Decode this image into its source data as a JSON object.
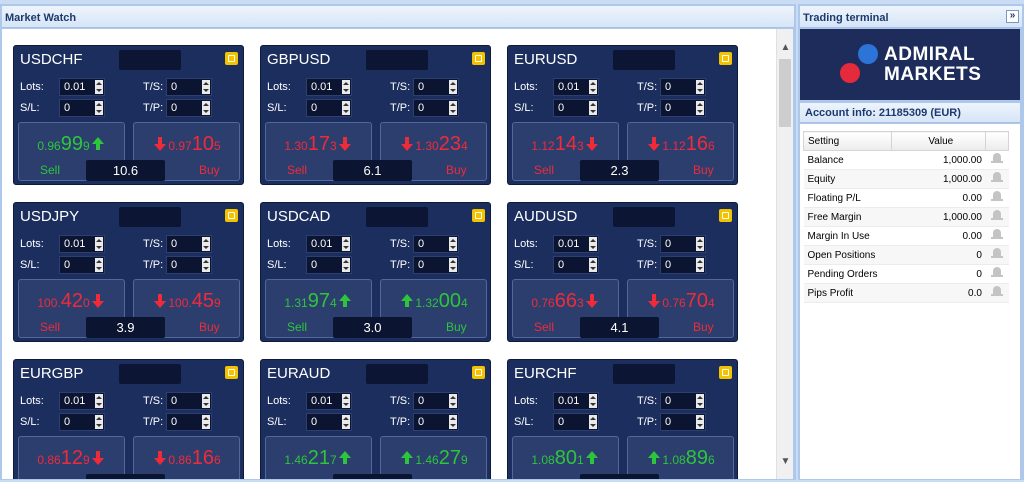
{
  "market_watch": {
    "title": "Market Watch",
    "labels": {
      "lots": "Lots:",
      "ts": "T/S:",
      "sl": "S/L:",
      "tp": "T/P:",
      "sell": "Sell",
      "buy": "Buy"
    },
    "tiles": [
      {
        "symbol": "USDCHF",
        "lots": "0.01",
        "ts": "0",
        "sl": "0",
        "tp": "0",
        "sell": {
          "small": "0.96",
          "big": "99",
          "pip": "9",
          "dir": "up"
        },
        "buy": {
          "small": "0.97",
          "big": "10",
          "pip": "5",
          "dir": "down"
        },
        "spread": "10.6"
      },
      {
        "symbol": "GBPUSD",
        "lots": "0.01",
        "ts": "0",
        "sl": "0",
        "tp": "0",
        "sell": {
          "small": "1.30",
          "big": "17",
          "pip": "3",
          "dir": "down"
        },
        "buy": {
          "small": "1.30",
          "big": "23",
          "pip": "4",
          "dir": "down"
        },
        "spread": "6.1"
      },
      {
        "symbol": "EURUSD",
        "lots": "0.01",
        "ts": "0",
        "sl": "0",
        "tp": "0",
        "sell": {
          "small": "1.12",
          "big": "14",
          "pip": "3",
          "dir": "down"
        },
        "buy": {
          "small": "1.12",
          "big": "16",
          "pip": "6",
          "dir": "down"
        },
        "spread": "2.3"
      },
      {
        "symbol": "USDJPY",
        "lots": "0.01",
        "ts": "0",
        "sl": "0",
        "tp": "0",
        "sell": {
          "small": "100.",
          "big": "42",
          "pip": "0",
          "dir": "down"
        },
        "buy": {
          "small": "100.",
          "big": "45",
          "pip": "9",
          "dir": "down"
        },
        "spread": "3.9"
      },
      {
        "symbol": "USDCAD",
        "lots": "0.01",
        "ts": "0",
        "sl": "0",
        "tp": "0",
        "sell": {
          "small": "1.31",
          "big": "97",
          "pip": "4",
          "dir": "up"
        },
        "buy": {
          "small": "1.32",
          "big": "00",
          "pip": "4",
          "dir": "up"
        },
        "spread": "3.0"
      },
      {
        "symbol": "AUDUSD",
        "lots": "0.01",
        "ts": "0",
        "sl": "0",
        "tp": "0",
        "sell": {
          "small": "0.76",
          "big": "66",
          "pip": "3",
          "dir": "down"
        },
        "buy": {
          "small": "0.76",
          "big": "70",
          "pip": "4",
          "dir": "down"
        },
        "spread": "4.1"
      },
      {
        "symbol": "EURGBP",
        "lots": "0.01",
        "ts": "0",
        "sl": "0",
        "tp": "0",
        "sell": {
          "small": "0.86",
          "big": "12",
          "pip": "9",
          "dir": "down"
        },
        "buy": {
          "small": "0.86",
          "big": "16",
          "pip": "6",
          "dir": "down"
        },
        "spread": ""
      },
      {
        "symbol": "EURAUD",
        "lots": "0.01",
        "ts": "0",
        "sl": "0",
        "tp": "0",
        "sell": {
          "small": "1.46",
          "big": "21",
          "pip": "7",
          "dir": "up"
        },
        "buy": {
          "small": "1.46",
          "big": "27",
          "pip": "9",
          "dir": "up"
        },
        "spread": ""
      },
      {
        "symbol": "EURCHF",
        "lots": "0.01",
        "ts": "0",
        "sl": "0",
        "tp": "0",
        "sell": {
          "small": "1.08",
          "big": "80",
          "pip": "1",
          "dir": "up"
        },
        "buy": {
          "small": "1.08",
          "big": "89",
          "pip": "6",
          "dir": "up"
        },
        "spread": ""
      }
    ]
  },
  "trading_terminal": {
    "title": "Trading terminal",
    "expand_glyph": "»",
    "logo": {
      "line1": "ADMIRAL",
      "line2": "MARKETS"
    },
    "account_header": "Account info: 21185309 (EUR)",
    "table": {
      "col_setting": "Setting",
      "col_value": "Value",
      "rows": [
        {
          "setting": "Balance",
          "value": "1,000.00"
        },
        {
          "setting": "Equity",
          "value": "1,000.00"
        },
        {
          "setting": "Floating P/L",
          "value": "0.00"
        },
        {
          "setting": "Free Margin",
          "value": "1,000.00"
        },
        {
          "setting": "Margin In Use",
          "value": "0.00"
        },
        {
          "setting": "Open Positions",
          "value": "0"
        },
        {
          "setting": "Pending Orders",
          "value": "0"
        },
        {
          "setting": "Pips Profit",
          "value": "0.0"
        }
      ]
    }
  },
  "colors": {
    "tile_bg": "#1c2e5e",
    "up": "#2dc53c",
    "down": "#ef2b3a",
    "accent_config": "#f3c300"
  },
  "icons": {
    "config": "config-icon",
    "alert": "bell-icon",
    "up": "arrow-up-icon",
    "down": "arrow-down-icon"
  }
}
